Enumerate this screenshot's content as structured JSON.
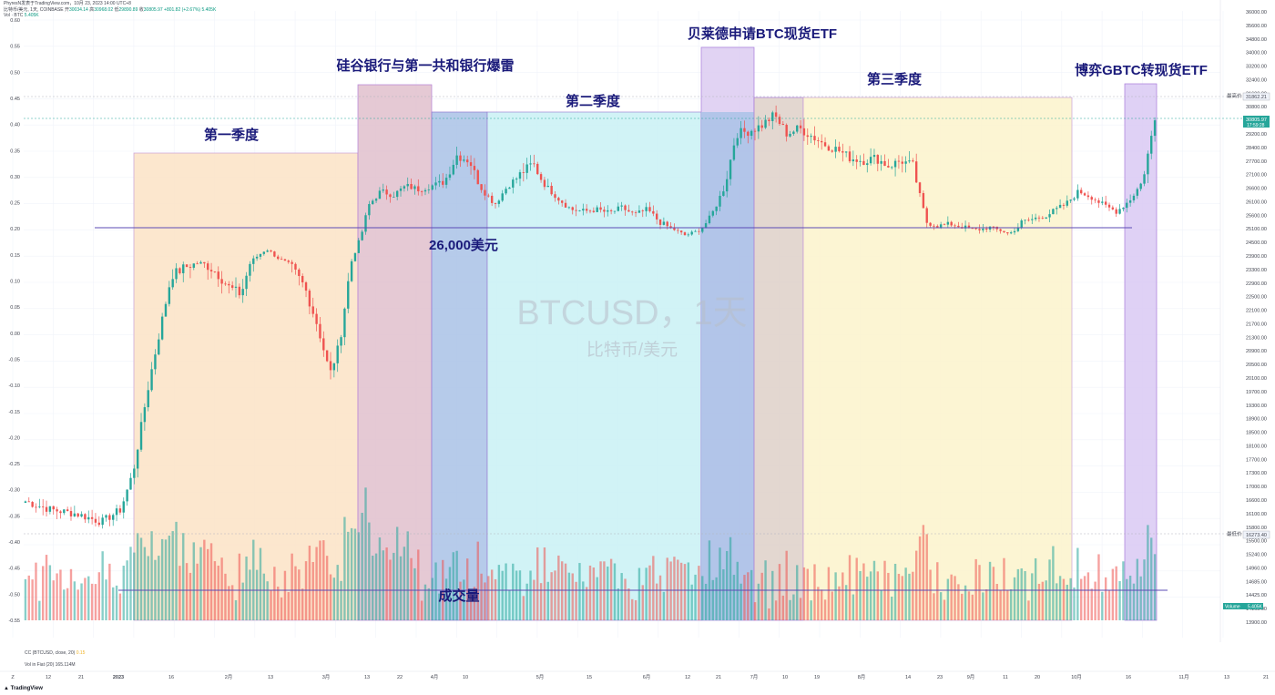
{
  "header": {
    "author": "PhyresN发表于TradingView.com，10月 23, 2023 14:00 UTC+8",
    "symbol_line": "比特币/美元, 1天, COINBASE",
    "ohlc": {
      "o_label": "开",
      "o": "30034.14",
      "h_label": "高",
      "h": "30968.02",
      "l_label": "低",
      "l": "29890.89",
      "c_label": "收",
      "c": "30805.97",
      "change": "+801.82 (+2.67%)",
      "volume": "5.405K"
    },
    "vol_line": {
      "label": "Vol · BTC",
      "value": "5.405K"
    }
  },
  "colors": {
    "up": "#26a69a",
    "down": "#ef5350",
    "q1": "#fbe3c6",
    "svb": "#e1c0cc",
    "q2": "#c9f1f4",
    "blackrock": "#dccbf1",
    "q3": "#fbf3cb",
    "gbtc": "#d9c9f3",
    "overlap_blue": "#a9c2e6",
    "overlap_brown": "#ded0c8",
    "annotation": "#1a1a7a",
    "hline": "#5b4bb5"
  },
  "annotations": {
    "q1": "第一季度",
    "svb": "硅谷银行与第一共和银行爆雷",
    "q2": "第二季度",
    "blackrock": "贝莱德申请BTC现货ETF",
    "q3": "第三季度",
    "gbtc": "博弈GBTC转现货ETF",
    "support": "26,000美元",
    "volume": "成交量"
  },
  "watermark": {
    "title": "BTCUSD，1天",
    "subtitle": "比特币/美元"
  },
  "price_labels": {
    "high_tag": "最高价",
    "high_value": "31862.21",
    "last_value": "30805.97",
    "countdown": "17:59:28",
    "low_tag": "最低价",
    "low_value": "16273.40",
    "volume_tag": "Volume",
    "volume_value": "5.405K"
  },
  "left_axis_ticks": [
    "0.60",
    "0.55",
    "0.50",
    "0.45",
    "0.40",
    "0.35",
    "0.30",
    "0.25",
    "0.20",
    "0.15",
    "0.10",
    "0.05",
    "0.00",
    "-0.05",
    "-0.10",
    "-0.15",
    "-0.20",
    "-0.25",
    "-0.30",
    "-0.35",
    "-0.40",
    "-0.45",
    "-0.50",
    "-0.55"
  ],
  "right_axis_ticks": [
    "36000.00",
    "35600.00",
    "34800.00",
    "34000.00",
    "33200.00",
    "32400.00",
    "31600.00",
    "30800.00",
    "30000.00",
    "29200.00",
    "28400.00",
    "27700.00",
    "27100.00",
    "26600.00",
    "26100.00",
    "25600.00",
    "25100.00",
    "24500.00",
    "23900.00",
    "23300.00",
    "22900.00",
    "22500.00",
    "22100.00",
    "21700.00",
    "21300.00",
    "20900.00",
    "20500.00",
    "20100.00",
    "19700.00",
    "19300.00",
    "18900.00",
    "18500.00",
    "18100.00",
    "17700.00",
    "17300.00",
    "17000.00",
    "16600.00",
    "16100.00",
    "15800.00",
    "15500.00",
    "15240.00",
    "14960.00",
    "14685.00",
    "14425.00",
    "14165.00",
    "13900.00"
  ],
  "x_axis_ticks": [
    "Z",
    "12",
    "21",
    "2023",
    "16",
    "2月",
    "13",
    "3月",
    "13",
    "22",
    "4月",
    "10",
    "5月",
    "15",
    "6月",
    "12",
    "21",
    "7月",
    "10",
    "19",
    "8月",
    "14",
    "23",
    "9月",
    "11",
    "20",
    "10月",
    "16",
    "11月",
    "13",
    "21"
  ],
  "footer": {
    "cc_line": "CC (BTCUSD, close, 20)",
    "cc_value": "0.15",
    "vol_flat_line": "Vol in Fiat (20)",
    "vol_flat_value": "165.114M",
    "logo": "TradingView"
  },
  "chart_data": {
    "type": "candlestick",
    "symbol": "BTCUSD",
    "timeframe": "1D",
    "support_level": 26000,
    "date_range": [
      "2022-12-05",
      "2023-10-23"
    ],
    "key_prices": {
      "start": 17000,
      "q1_end": 28500,
      "svb_low": 19700,
      "blackrock_high": 31400,
      "q3_low": 25300,
      "last": 30805.97,
      "high": 31862.21,
      "low": 16273.4
    },
    "segments": [
      {
        "label": "第一季度",
        "from": "2023-01-01",
        "to": "2023-03-31"
      },
      {
        "label": "硅谷银行与第一共和银行爆雷",
        "from": "2023-03-10",
        "to": "2023-04-13"
      },
      {
        "label": "第二季度",
        "from": "2023-04-01",
        "to": "2023-06-30"
      },
      {
        "label": "贝莱德申请BTC现货ETF",
        "from": "2023-06-15",
        "to": "2023-07-14"
      },
      {
        "label": "第三季度",
        "from": "2023-07-01",
        "to": "2023-09-30"
      },
      {
        "label": "博弈GBTC转现货ETF",
        "from": "2023-10-16",
        "to": "2023-10-23"
      }
    ]
  }
}
